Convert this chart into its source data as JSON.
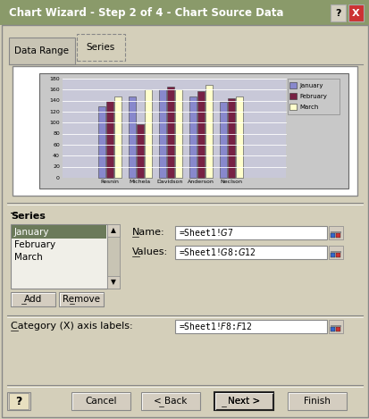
{
  "title": "Chart Wizard - Step 2 of 4 - Chart Source Data",
  "tab1": "Data Range",
  "tab2": "Series",
  "categories": [
    "Resnin",
    "Michela",
    "Davidson",
    "Anderson",
    "Neclson"
  ],
  "series": {
    "January": [
      130,
      148,
      160,
      148,
      138
    ],
    "February": [
      140,
      98,
      165,
      158,
      144
    ],
    "March": [
      148,
      160,
      160,
      168,
      148
    ]
  },
  "series_colors": {
    "January": "#8888cc",
    "February": "#772244",
    "March": "#ffffcc"
  },
  "ylim": [
    0,
    180
  ],
  "yticks": [
    0,
    20,
    40,
    60,
    80,
    100,
    120,
    140,
    160,
    180
  ],
  "series_list": [
    "January",
    "February",
    "March"
  ],
  "series_selected": "January",
  "name_value": "=Sheet1!$G$7",
  "values_value": "=Sheet1!$G$8:$G$12",
  "category_labels": "=Sheet1!$F$8:$F$12",
  "dialog_bg": "#d4cfba",
  "title_bg": "#8a9a6a",
  "chart_bg": "#c8c8c8",
  "chart_plot_bg": "#c8c8d8",
  "tab_bg": "#d4cfba",
  "series_selected_bg": "#6b7a5a",
  "series_box_bg": "#f0efe8",
  "input_bg": "#ffffff",
  "btn_bg": "#d4cdc0"
}
